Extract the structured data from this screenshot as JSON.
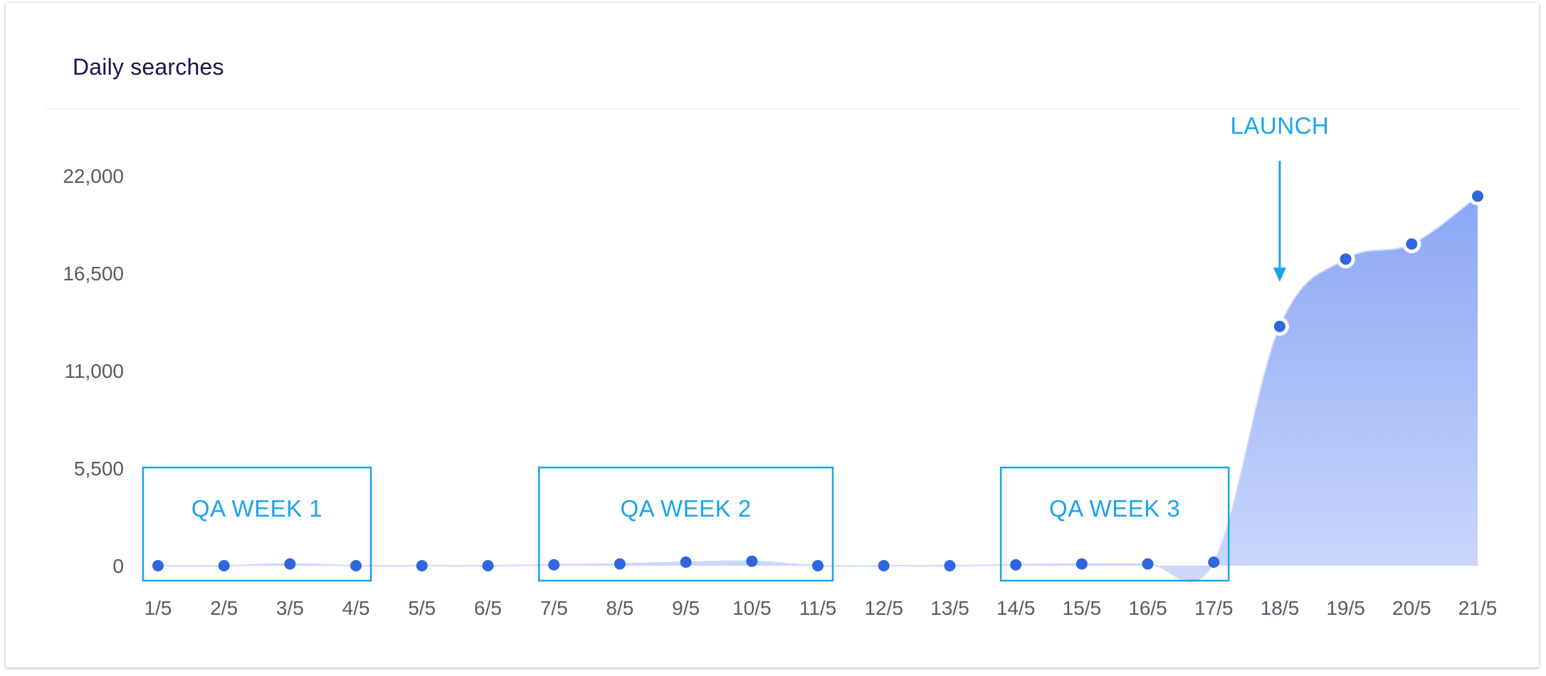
{
  "title": "Daily searches",
  "colors": {
    "accent": "#1aa3ec",
    "point": "#2f66e0",
    "area_top": "#8aa6f5",
    "area_bottom": "#cdd8fb",
    "title": "#14174d",
    "tick": "#555b66"
  },
  "chart_data": {
    "type": "area",
    "title": "Daily searches",
    "xlabel": "",
    "ylabel": "",
    "categories": [
      "1/5",
      "2/5",
      "3/5",
      "4/5",
      "5/5",
      "6/5",
      "7/5",
      "8/5",
      "9/5",
      "10/5",
      "11/5",
      "12/5",
      "13/5",
      "14/5",
      "15/5",
      "16/5",
      "17/5",
      "18/5",
      "19/5",
      "20/5",
      "21/5"
    ],
    "values": [
      0,
      0,
      100,
      0,
      0,
      0,
      50,
      100,
      200,
      250,
      0,
      0,
      0,
      50,
      100,
      100,
      200,
      13500,
      17300,
      18150,
      20850
    ],
    "y_ticks": [
      "0",
      "5,500",
      "11,000",
      "16,500",
      "22,000"
    ],
    "ylim": [
      0,
      22000
    ],
    "grid": false,
    "legend": "none",
    "annotations": [
      {
        "type": "box",
        "label": "QA WEEK 1",
        "from": "1/5",
        "to": "4/5"
      },
      {
        "type": "box",
        "label": "QA WEEK 2",
        "from": "7/5",
        "to": "11/5"
      },
      {
        "type": "box",
        "label": "QA WEEK 3",
        "from": "14/5",
        "to": "17/5"
      },
      {
        "type": "arrow",
        "label": "LAUNCH",
        "at": "18/5"
      }
    ]
  }
}
